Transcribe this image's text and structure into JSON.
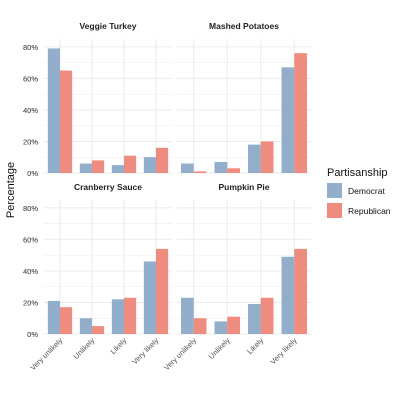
{
  "chart_data": {
    "type": "bar",
    "ylabel": "Percentage",
    "ylim": [
      0,
      0.85
    ],
    "yticks": [
      "0%",
      "20%",
      "40%",
      "60%",
      "80%"
    ],
    "categories": [
      "Very unlikely",
      "Unlikely",
      "Likely",
      "Very likely"
    ],
    "legend": {
      "title": "Partisanship",
      "entries": [
        {
          "name": "Democrat",
          "color": "#92aecb"
        },
        {
          "name": "Republican",
          "color": "#ef8c80"
        }
      ],
      "position": "right"
    },
    "panels": [
      {
        "title": "Veggie Turkey",
        "series": [
          {
            "name": "Democrat",
            "values": [
              0.79,
              0.06,
              0.05,
              0.1
            ]
          },
          {
            "name": "Republican",
            "values": [
              0.65,
              0.08,
              0.11,
              0.16
            ]
          }
        ]
      },
      {
        "title": "Mashed Potatoes",
        "series": [
          {
            "name": "Democrat",
            "values": [
              0.06,
              0.07,
              0.18,
              0.67
            ]
          },
          {
            "name": "Republican",
            "values": [
              0.01,
              0.03,
              0.2,
              0.76
            ]
          }
        ]
      },
      {
        "title": "Cranberry Sauce",
        "series": [
          {
            "name": "Democrat",
            "values": [
              0.21,
              0.1,
              0.22,
              0.46
            ]
          },
          {
            "name": "Republican",
            "values": [
              0.17,
              0.05,
              0.23,
              0.54
            ]
          }
        ]
      },
      {
        "title": "Pumpkin Pie",
        "series": [
          {
            "name": "Democrat",
            "values": [
              0.23,
              0.08,
              0.19,
              0.49
            ]
          },
          {
            "name": "Republican",
            "values": [
              0.1,
              0.11,
              0.23,
              0.54
            ]
          }
        ]
      }
    ],
    "grid": true
  }
}
